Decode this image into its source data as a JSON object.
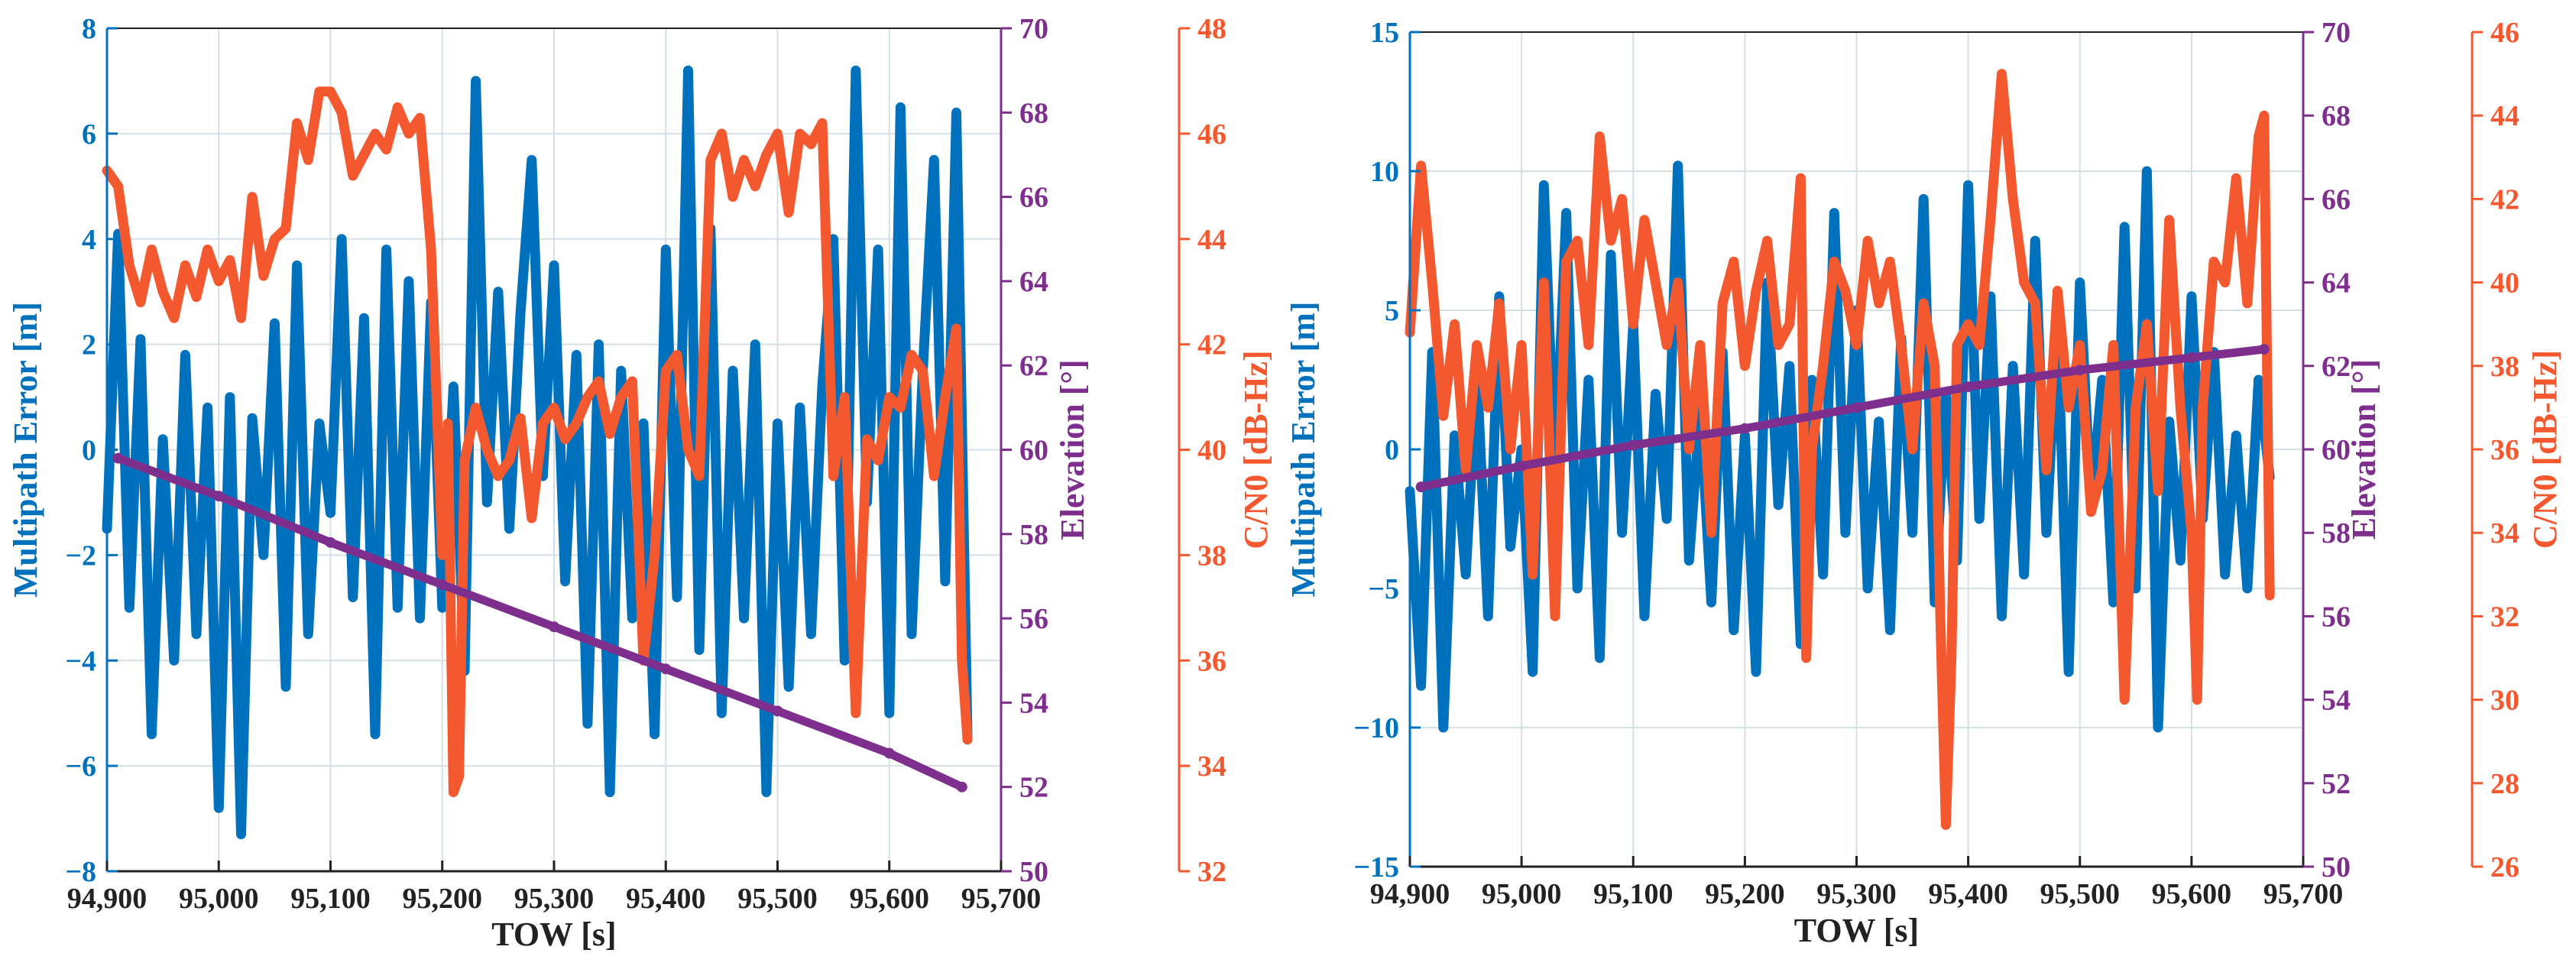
{
  "colors": {
    "multipath": "#0072BD",
    "elevation": "#7E2F8E",
    "cn0": "#F4582F",
    "grid": "#d4dfe6",
    "axis": "#222222"
  },
  "chart_data": [
    {
      "type": "line",
      "xlabel": "TOW [s]",
      "x_ticks": [
        "94,900",
        "95,000",
        "95,100",
        "95,200",
        "95,300",
        "95,400",
        "95,500",
        "95,600",
        "95,700"
      ],
      "xlim": [
        94900,
        95700
      ],
      "y_left": {
        "label": "Multipath Error [m]",
        "lim": [
          -8,
          8
        ],
        "ticks": [
          "−8",
          "−6",
          "−4",
          "−2",
          "0",
          "2",
          "4",
          "6",
          "8"
        ]
      },
      "y_elev": {
        "label": "Elevation [°]",
        "lim": [
          50,
          70
        ],
        "ticks": [
          "50",
          "52",
          "54",
          "56",
          "58",
          "60",
          "62",
          "64",
          "66",
          "68",
          "70"
        ]
      },
      "y_cn0": {
        "label": "C/N0 [dB-Hz]",
        "lim": [
          32,
          48
        ],
        "ticks": [
          "32",
          "34",
          "36",
          "38",
          "40",
          "42",
          "44",
          "46",
          "48"
        ]
      },
      "series": [
        {
          "name": "Multipath Error",
          "axis": "left",
          "color": "#0072BD",
          "x": [
            94900,
            94910,
            94920,
            94930,
            94940,
            94950,
            94960,
            94970,
            94980,
            94990,
            95000,
            95010,
            95020,
            95030,
            95040,
            95050,
            95060,
            95070,
            95080,
            95090,
            95100,
            95110,
            95120,
            95130,
            95140,
            95150,
            95160,
            95170,
            95180,
            95190,
            95200,
            95210,
            95220,
            95230,
            95240,
            95250,
            95260,
            95270,
            95280,
            95290,
            95300,
            95310,
            95320,
            95330,
            95340,
            95350,
            95360,
            95370,
            95380,
            95390,
            95400,
            95410,
            95420,
            95430,
            95440,
            95450,
            95460,
            95470,
            95480,
            95490,
            95500,
            95510,
            95520,
            95530,
            95540,
            95550,
            95560,
            95570,
            95580,
            95590,
            95600,
            95610,
            95620,
            95630,
            95640,
            95650,
            95660,
            95670
          ],
          "values": [
            -1.5,
            4.1,
            -3.0,
            2.1,
            -5.4,
            0.2,
            -4.0,
            1.8,
            -3.5,
            0.8,
            -6.8,
            1.0,
            -7.3,
            0.6,
            -2.0,
            2.4,
            -4.5,
            3.5,
            -3.5,
            0.5,
            -1.2,
            4.0,
            -2.8,
            2.5,
            -5.4,
            3.8,
            -3.0,
            3.2,
            -3.2,
            2.8,
            -3.0,
            1.2,
            -4.2,
            7.0,
            -1.0,
            3.0,
            -1.5,
            2.6,
            5.5,
            -0.5,
            3.5,
            -2.5,
            1.8,
            -5.2,
            2.0,
            -6.5,
            1.5,
            -3.2,
            0.5,
            -5.4,
            3.8,
            -2.8,
            7.2,
            -3.8,
            4.2,
            -5.0,
            1.5,
            -3.2,
            2.0,
            -6.5,
            0.5,
            -4.5,
            0.8,
            -3.5,
            1.2,
            4.0,
            -4.0,
            7.2,
            -1.0,
            3.8,
            -5.0,
            6.5,
            -3.5,
            1.5,
            5.5,
            -2.5,
            6.4,
            -5.5
          ]
        },
        {
          "name": "C/N0",
          "axis": "cn0",
          "color": "#F4582F",
          "x": [
            94900,
            94910,
            94920,
            94930,
            94940,
            94950,
            94960,
            94970,
            94980,
            94990,
            95000,
            95010,
            95020,
            95030,
            95040,
            95050,
            95060,
            95070,
            95080,
            95090,
            95100,
            95110,
            95120,
            95130,
            95140,
            95150,
            95160,
            95170,
            95180,
            95190,
            95200,
            95205,
            95210,
            95215,
            95220,
            95230,
            95240,
            95250,
            95260,
            95270,
            95280,
            95290,
            95300,
            95310,
            95320,
            95330,
            95340,
            95350,
            95360,
            95370,
            95380,
            95390,
            95400,
            95410,
            95420,
            95430,
            95440,
            95450,
            95460,
            95470,
            95480,
            95490,
            95500,
            95510,
            95520,
            95530,
            95540,
            95550,
            95560,
            95570,
            95580,
            95590,
            95600,
            95610,
            95620,
            95630,
            95640,
            95650,
            95660,
            95665,
            95670
          ],
          "values": [
            45.3,
            45.0,
            43.5,
            42.8,
            43.8,
            43.0,
            42.5,
            43.5,
            42.9,
            43.8,
            43.2,
            43.6,
            42.5,
            44.8,
            43.3,
            44.0,
            44.2,
            46.2,
            45.5,
            46.8,
            46.8,
            46.4,
            45.2,
            45.6,
            46.0,
            45.7,
            46.5,
            46.0,
            46.3,
            43.8,
            38.0,
            40.5,
            33.5,
            33.8,
            39.8,
            40.8,
            40.0,
            39.5,
            39.8,
            40.6,
            38.7,
            40.5,
            40.8,
            40.2,
            40.5,
            41.0,
            41.3,
            40.3,
            41.0,
            41.3,
            36.0,
            38.0,
            41.5,
            41.8,
            40.0,
            39.5,
            45.5,
            46.0,
            44.8,
            45.5,
            45.0,
            45.6,
            46.0,
            44.5,
            46.0,
            45.8,
            46.2,
            39.5,
            41.0,
            35.0,
            40.2,
            39.8,
            41.0,
            40.8,
            41.8,
            41.5,
            39.5,
            41.0,
            42.3,
            36.0,
            34.5
          ]
        },
        {
          "name": "Elevation",
          "axis": "elev",
          "color": "#7E2F8E",
          "x": [
            94910,
            95000,
            95100,
            95200,
            95300,
            95400,
            95500,
            95600,
            95665
          ],
          "values": [
            59.8,
            58.9,
            57.8,
            56.8,
            55.8,
            54.8,
            53.8,
            52.8,
            52.0
          ]
        }
      ]
    },
    {
      "type": "line",
      "xlabel": "TOW [s]",
      "x_ticks": [
        "94,900",
        "95,000",
        "95,100",
        "95,200",
        "95,300",
        "95,400",
        "95,500",
        "95,600",
        "95,700"
      ],
      "xlim": [
        94900,
        95700
      ],
      "y_left": {
        "label": "Multipath Error [m]",
        "lim": [
          -15,
          15
        ],
        "ticks": [
          "−15",
          "−10",
          "−5",
          "0",
          "5",
          "10",
          "15"
        ]
      },
      "y_elev": {
        "label": "Elevation [°]",
        "lim": [
          50,
          70
        ],
        "ticks": [
          "50",
          "52",
          "54",
          "56",
          "58",
          "60",
          "62",
          "64",
          "66",
          "68",
          "70"
        ]
      },
      "y_cn0": {
        "label": "C/N0 [dB-Hz]",
        "lim": [
          26,
          46
        ],
        "ticks": [
          "26",
          "28",
          "30",
          "32",
          "34",
          "36",
          "38",
          "40",
          "42",
          "44",
          "46"
        ]
      },
      "series": [
        {
          "name": "Multipath Error",
          "axis": "left",
          "color": "#0072BD",
          "x": [
            94900,
            94910,
            94920,
            94930,
            94940,
            94950,
            94960,
            94970,
            94980,
            94990,
            95000,
            95010,
            95020,
            95030,
            95040,
            95050,
            95060,
            95070,
            95080,
            95090,
            95100,
            95110,
            95120,
            95130,
            95140,
            95150,
            95160,
            95170,
            95180,
            95190,
            95200,
            95210,
            95220,
            95230,
            95240,
            95250,
            95260,
            95270,
            95280,
            95290,
            95300,
            95310,
            95320,
            95330,
            95340,
            95350,
            95360,
            95370,
            95380,
            95390,
            95400,
            95410,
            95420,
            95430,
            95440,
            95450,
            95460,
            95470,
            95480,
            95490,
            95500,
            95510,
            95520,
            95530,
            95540,
            95550,
            95560,
            95570,
            95580,
            95590,
            95600,
            95610,
            95620,
            95630,
            95640,
            95650,
            95660,
            95670
          ],
          "values": [
            -1.5,
            -8.5,
            3.5,
            -10.0,
            0.5,
            -4.5,
            2.8,
            -6.0,
            5.5,
            -3.5,
            0.0,
            -8.0,
            9.5,
            -1.0,
            8.5,
            -5.0,
            2.5,
            -7.5,
            7.0,
            -3.0,
            4.5,
            -6.0,
            2.0,
            -2.5,
            10.2,
            -4.0,
            1.5,
            -5.5,
            3.5,
            -6.5,
            0.5,
            -8.0,
            6.0,
            -2.0,
            3.0,
            -7.0,
            2.5,
            -4.5,
            8.5,
            -3.0,
            5.0,
            -5.0,
            1.0,
            -6.5,
            4.0,
            -3.0,
            9.0,
            -5.5,
            2.0,
            -4.0,
            9.5,
            -2.5,
            5.5,
            -6.0,
            3.0,
            -4.5,
            7.5,
            -3.0,
            4.5,
            -8.0,
            6.0,
            -2.0,
            2.5,
            -5.5,
            8.0,
            -5.0,
            10.0,
            -10.0,
            1.0,
            -4.0,
            5.5,
            -2.5,
            3.5,
            -4.5,
            0.5,
            -5.0,
            2.5,
            -1.0
          ]
        },
        {
          "name": "C/N0",
          "axis": "cn0",
          "color": "#F4582F",
          "x": [
            94900,
            94910,
            94920,
            94930,
            94940,
            94950,
            94960,
            94970,
            94980,
            94990,
            95000,
            95010,
            95020,
            95030,
            95040,
            95050,
            95060,
            95070,
            95080,
            95090,
            95100,
            95110,
            95120,
            95130,
            95140,
            95150,
            95160,
            95170,
            95180,
            95190,
            95200,
            95210,
            95220,
            95230,
            95240,
            95250,
            95255,
            95260,
            95270,
            95280,
            95290,
            95300,
            95310,
            95320,
            95330,
            95340,
            95350,
            95360,
            95370,
            95375,
            95380,
            95385,
            95390,
            95400,
            95410,
            95420,
            95430,
            95440,
            95450,
            95460,
            95470,
            95480,
            95490,
            95500,
            95510,
            95520,
            95530,
            95540,
            95550,
            95560,
            95570,
            95580,
            95590,
            95600,
            95605,
            95610,
            95620,
            95630,
            95640,
            95650,
            95660,
            95665,
            95670
          ],
          "values": [
            38.8,
            42.8,
            40.0,
            36.8,
            39.0,
            35.5,
            38.5,
            37.0,
            39.5,
            36.0,
            38.5,
            33.0,
            40.0,
            32.0,
            40.5,
            41.0,
            38.5,
            43.5,
            41.0,
            42.0,
            39.0,
            41.5,
            40.0,
            38.5,
            40.0,
            36.0,
            38.5,
            34.0,
            39.5,
            40.5,
            38.0,
            39.8,
            41.0,
            38.5,
            39.0,
            42.5,
            31.0,
            36.0,
            38.0,
            40.5,
            39.8,
            38.5,
            41.0,
            39.5,
            40.5,
            38.5,
            36.0,
            39.5,
            38.0,
            32.0,
            27.0,
            31.0,
            38.5,
            39.0,
            38.5,
            41.5,
            45.0,
            42.0,
            40.0,
            39.5,
            35.5,
            39.8,
            37.0,
            38.5,
            34.5,
            35.5,
            38.5,
            30.0,
            37.0,
            39.0,
            35.0,
            41.5,
            37.0,
            34.0,
            30.0,
            37.0,
            40.5,
            40.0,
            42.5,
            39.5,
            43.5,
            44.0,
            32.5
          ]
        },
        {
          "name": "Elevation",
          "axis": "elev",
          "color": "#7E2F8E",
          "x": [
            94910,
            95000,
            95100,
            95200,
            95300,
            95400,
            95500,
            95600,
            95665
          ],
          "values": [
            59.1,
            59.6,
            60.1,
            60.5,
            61.0,
            61.5,
            61.9,
            62.2,
            62.4
          ]
        }
      ]
    }
  ]
}
